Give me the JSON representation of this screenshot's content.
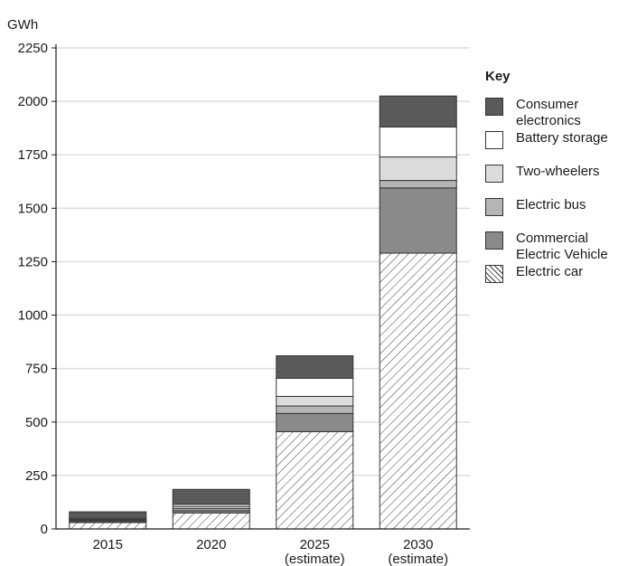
{
  "chart_data": {
    "type": "bar",
    "stacked": true,
    "ylabel": "GWh",
    "ylim": [
      0,
      2250
    ],
    "yticks": [
      0,
      250,
      500,
      750,
      1000,
      1250,
      1500,
      1750,
      2000,
      2250
    ],
    "grid": true,
    "legend_position": "right",
    "legend_title": "Key",
    "categories": [
      {
        "label": "2015",
        "sub": ""
      },
      {
        "label": "2020",
        "sub": ""
      },
      {
        "label": "2025",
        "sub": "(estimate)"
      },
      {
        "label": "2030",
        "sub": "(estimate)"
      }
    ],
    "series": [
      {
        "name": "Electric car",
        "key": "car",
        "color": "#ffffff",
        "pattern": "hatch",
        "values": [
          30,
          75,
          455,
          1290
        ]
      },
      {
        "name": "Commercial\nElectric Vehicle",
        "key": "commercial",
        "color": "#8a8a8a",
        "pattern": "solid",
        "values": [
          5,
          10,
          85,
          305
        ]
      },
      {
        "name": "Electric bus",
        "key": "bus",
        "color": "#b5b5b5",
        "pattern": "solid",
        "values": [
          5,
          10,
          35,
          35
        ]
      },
      {
        "name": "Two-wheelers",
        "key": "twowheel",
        "color": "#dcdcdc",
        "pattern": "solid",
        "values": [
          5,
          10,
          45,
          110
        ]
      },
      {
        "name": "Battery storage",
        "key": "battery",
        "color": "#ffffff",
        "pattern": "solid",
        "values": [
          5,
          10,
          85,
          140
        ]
      },
      {
        "name": "Consumer\nelectronics",
        "key": "consumer",
        "color": "#5a5a5a",
        "pattern": "solid",
        "values": [
          30,
          70,
          105,
          145
        ]
      }
    ],
    "legend_order": [
      "consumer",
      "battery",
      "twowheel",
      "bus",
      "commercial",
      "car"
    ]
  }
}
